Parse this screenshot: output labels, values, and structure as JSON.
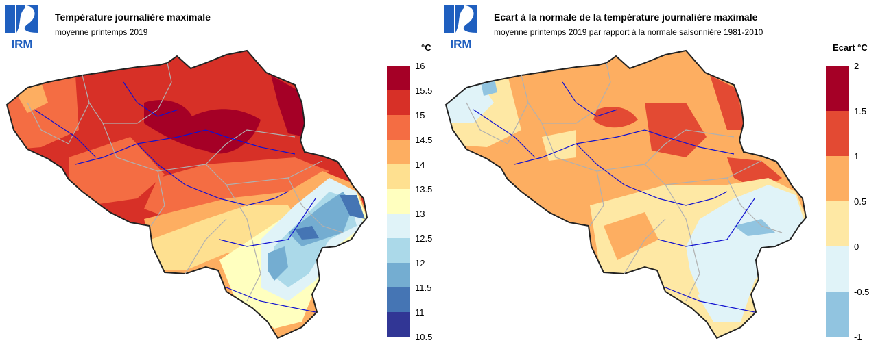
{
  "logo_text": "IRM",
  "panels": [
    {
      "title": "Température journalière maximale",
      "subtitle": "moyenne printemps 2019",
      "legend": {
        "unit": "°C",
        "ticks": [
          "16",
          "15.5",
          "15",
          "14.5",
          "14",
          "13.5",
          "13",
          "12.5",
          "12",
          "11.5",
          "11",
          "10.5"
        ],
        "colors": [
          "#a50026",
          "#d73027",
          "#f46d43",
          "#fdae61",
          "#fee090",
          "#ffffbf",
          "#e0f3f8",
          "#abd9e9",
          "#74add1",
          "#4575b4",
          "#313695"
        ]
      }
    },
    {
      "title": "Ecart à la normale de la température journalière maximale",
      "subtitle": "moyenne printemps 2019 par rapport à la normale saisonnière 1981-2010",
      "legend": {
        "unit": "Ecart °C",
        "ticks": [
          "2",
          "1.5",
          "1",
          "0.5",
          "0",
          "-0.5",
          "-1"
        ],
        "colors": [
          "#a50026",
          "#e34a33",
          "#fdae61",
          "#fee8a4",
          "#e0f3f8",
          "#91c4e0"
        ]
      }
    }
  ]
}
